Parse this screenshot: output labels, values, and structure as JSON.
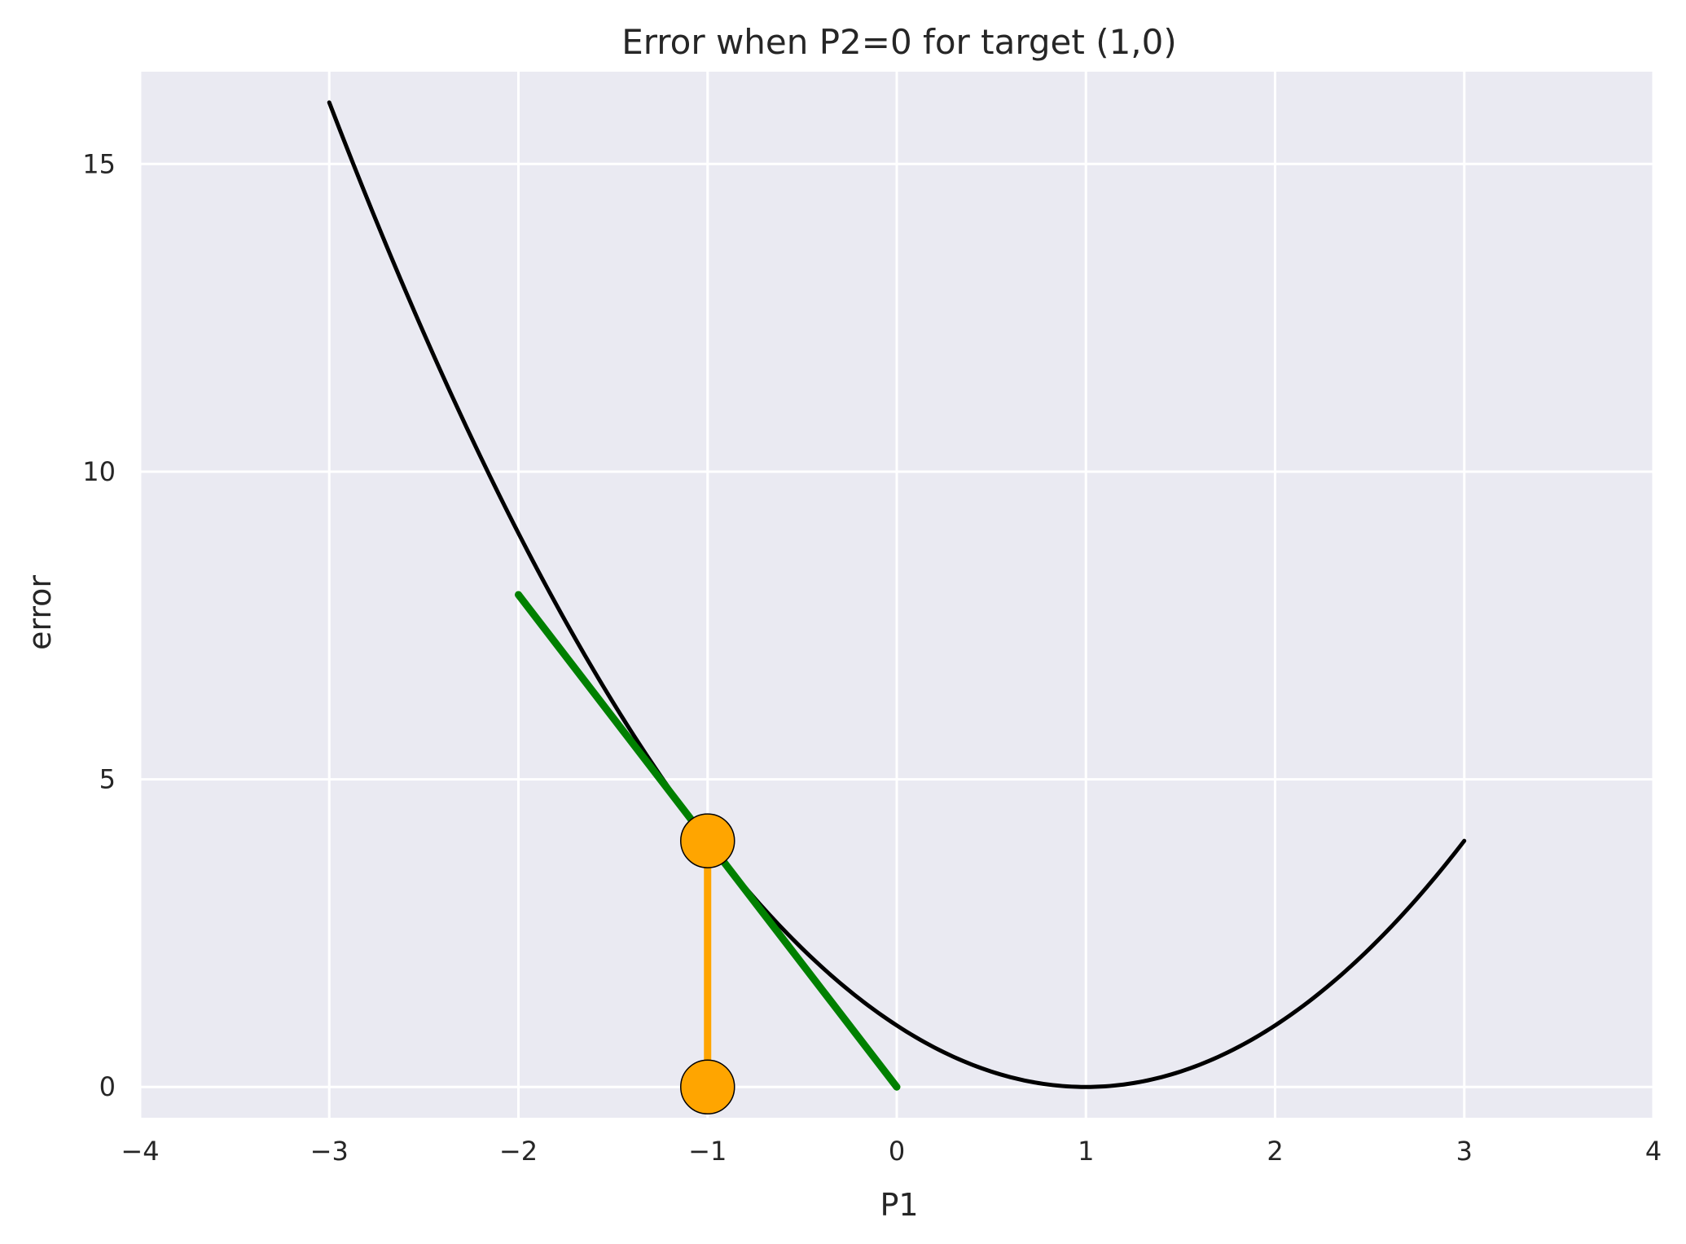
{
  "chart_data": {
    "type": "line",
    "title": "Error when P2=0 for target (1,0)",
    "xlabel": "P1",
    "ylabel": "error",
    "xlim": [
      -4,
      4
    ],
    "ylim": [
      -0.5,
      16.5
    ],
    "xticks": [
      -4,
      -3,
      -2,
      -1,
      0,
      1,
      2,
      3,
      4
    ],
    "xtick_labels": [
      "−4",
      "−3",
      "−2",
      "−1",
      "0",
      "1",
      "2",
      "3",
      "4"
    ],
    "yticks": [
      0,
      5,
      10,
      15
    ],
    "ytick_labels": [
      "0",
      "5",
      "10",
      "15"
    ],
    "grid": true,
    "background": "#eaeaf2",
    "series": [
      {
        "kind": "curve",
        "color": "#000000",
        "x": [
          -3.0,
          -2.75,
          -2.5,
          -2.25,
          -2.0,
          -1.75,
          -1.5,
          -1.25,
          -1.0,
          -0.75,
          -0.5,
          -0.25,
          0.0,
          0.25,
          0.5,
          0.75,
          1.0,
          1.25,
          1.5,
          1.75,
          2.0,
          2.25,
          2.5,
          2.75,
          3.0
        ],
        "y": [
          16.0,
          14.0625,
          12.25,
          10.5625,
          9.0,
          7.5625,
          6.25,
          5.0625,
          4.0,
          3.0625,
          2.25,
          1.5625,
          1.0,
          0.5625,
          0.25,
          0.0625,
          0.0,
          0.0625,
          0.25,
          0.5625,
          1.0,
          1.5625,
          2.25,
          3.0625,
          4.0
        ]
      },
      {
        "kind": "tangent",
        "color": "#008000",
        "x": [
          -2,
          0
        ],
        "y": [
          8,
          0
        ]
      },
      {
        "kind": "stem",
        "color": "#ffa500",
        "x": [
          -1,
          -1
        ],
        "y": [
          0,
          4
        ]
      }
    ],
    "points": [
      {
        "x": -1,
        "y": 4,
        "color": "#ffa500"
      },
      {
        "x": -1,
        "y": 0,
        "color": "#ffa500"
      }
    ]
  }
}
